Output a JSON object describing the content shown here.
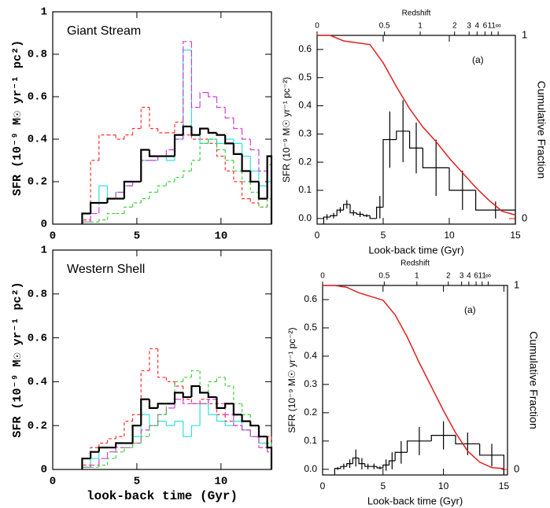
{
  "chart_data": [
    {
      "type": "histogram",
      "annotation": "Giant Stream",
      "ylabel": "SFR (10⁻⁹ M☉ yr⁻¹ pc²)",
      "xlim": [
        0,
        13
      ],
      "ylim": [
        0,
        1
      ],
      "xticks": [
        0,
        5,
        10
      ],
      "yticks": [
        0,
        0.2,
        0.4,
        0.6,
        0.8,
        1
      ],
      "bins": [
        1.75,
        2.25,
        2.75,
        3.25,
        3.75,
        4.25,
        4.75,
        5.25,
        5.75,
        6.25,
        6.75,
        7.25,
        7.75,
        8.25,
        8.75,
        9.25,
        9.75,
        10.25,
        10.75,
        11.25,
        11.75,
        12.25,
        12.75,
        13
      ],
      "series": [
        {
          "color": "#ff3030",
          "dash": "4,3",
          "values": [
            0.02,
            0.3,
            0.42,
            0.42,
            0.4,
            0.42,
            0.45,
            0.55,
            0.45,
            0.43,
            0.43,
            0.48,
            0.42,
            0.4,
            0.4,
            0.38,
            0.32,
            0.25,
            0.2,
            0.12,
            0.1,
            0.08,
            0.12
          ]
        },
        {
          "color": "#30e0e0",
          "dash": "",
          "values": [
            0.05,
            0.1,
            0.18,
            0.12,
            0.15,
            0.18,
            0.2,
            0.3,
            0.3,
            0.32,
            0.3,
            0.4,
            0.82,
            0.42,
            0.38,
            0.4,
            0.38,
            0.4,
            0.38,
            0.32,
            0.25,
            0.18,
            0.2
          ]
        },
        {
          "color": "#d040d0",
          "dash": "8,3",
          "values": [
            0.01,
            0.05,
            0.1,
            0.12,
            0.15,
            0.18,
            0.2,
            0.3,
            0.3,
            0.32,
            0.35,
            0.4,
            0.86,
            0.55,
            0.62,
            0.6,
            0.55,
            0.5,
            0.45,
            0.4,
            0.35,
            0.25,
            0.28
          ]
        },
        {
          "color": "#40d040",
          "dash": "4,3",
          "values": [
            0.01,
            0.01,
            0.02,
            0.05,
            0.05,
            0.08,
            0.1,
            0.12,
            0.15,
            0.18,
            0.2,
            0.22,
            0.25,
            0.3,
            0.38,
            0.4,
            0.35,
            0.3,
            0.25,
            0.2,
            0.15,
            0.08,
            0.12
          ]
        },
        {
          "color": "#000000",
          "dash": "",
          "values": [
            0.05,
            0.1,
            0.1,
            0.12,
            0.12,
            0.2,
            0.2,
            0.35,
            0.32,
            0.32,
            0.32,
            0.42,
            0.46,
            0.42,
            0.45,
            0.43,
            0.42,
            0.38,
            0.33,
            0.25,
            0.2,
            0.12,
            0.32
          ]
        }
      ]
    },
    {
      "type": "histogram",
      "annotation": "Western Shell",
      "ylabel": "SFR (10⁻⁹ M☉ yr⁻¹ pc²)",
      "xlabel": "look-back time (Gyr)",
      "xlim": [
        0,
        13
      ],
      "ylim": [
        0,
        1
      ],
      "xticks": [
        0,
        5,
        10
      ],
      "yticks": [
        0,
        0.2,
        0.4,
        0.6,
        0.8,
        1
      ],
      "bins": [
        1.75,
        2.25,
        2.75,
        3.25,
        3.75,
        4.25,
        4.75,
        5.25,
        5.75,
        6.25,
        6.75,
        7.25,
        7.75,
        8.25,
        8.75,
        9.25,
        9.75,
        10.25,
        10.75,
        11.25,
        11.75,
        12.25,
        12.75,
        13
      ],
      "series": [
        {
          "color": "#ff3030",
          "dash": "4,3",
          "values": [
            0.02,
            0.1,
            0.12,
            0.14,
            0.15,
            0.22,
            0.25,
            0.45,
            0.55,
            0.42,
            0.4,
            0.38,
            0.32,
            0.3,
            0.32,
            0.3,
            0.25,
            0.22,
            0.2,
            0.18,
            0.15,
            0.12,
            0.15
          ]
        },
        {
          "color": "#30e0e0",
          "dash": "",
          "values": [
            0.01,
            0.05,
            0.1,
            0.1,
            0.12,
            0.12,
            0.15,
            0.25,
            0.2,
            0.22,
            0.2,
            0.22,
            0.15,
            0.2,
            0.3,
            0.25,
            0.22,
            0.2,
            0.22,
            0.18,
            0.15,
            0.12,
            0.1
          ]
        },
        {
          "color": "#d040d0",
          "dash": "8,3",
          "values": [
            0.01,
            0.02,
            0.05,
            0.08,
            0.1,
            0.1,
            0.12,
            0.18,
            0.2,
            0.25,
            0.28,
            0.32,
            0.3,
            0.3,
            0.3,
            0.32,
            0.3,
            0.25,
            0.2,
            0.18,
            0.15,
            0.1,
            0.08
          ]
        },
        {
          "color": "#40d040",
          "dash": "4,3",
          "values": [
            0.01,
            0.01,
            0.02,
            0.05,
            0.08,
            0.1,
            0.12,
            0.15,
            0.2,
            0.25,
            0.3,
            0.4,
            0.42,
            0.45,
            0.35,
            0.4,
            0.42,
            0.38,
            0.3,
            0.25,
            0.2,
            0.15,
            0.12
          ]
        },
        {
          "color": "#000000",
          "dash": "",
          "values": [
            0.05,
            0.08,
            0.1,
            0.1,
            0.12,
            0.12,
            0.2,
            0.32,
            0.28,
            0.3,
            0.3,
            0.35,
            0.33,
            0.38,
            0.35,
            0.33,
            0.28,
            0.3,
            0.25,
            0.22,
            0.2,
            0.15,
            0.1
          ]
        }
      ]
    },
    {
      "type": "histogram",
      "annotation": "(a)",
      "ylabel": "SFR (10⁻⁹ M☉ yr⁻¹ pc⁻²)",
      "xlabel": "Look-back time (Gyr)",
      "y2label": "Cumulative Fraction",
      "x2label": "Redshift",
      "xlim": [
        0,
        15
      ],
      "ylim": [
        -0.02,
        0.65
      ],
      "y2lim": [
        -0.03,
        1
      ],
      "xticks": [
        0,
        5,
        10,
        15
      ],
      "yticks": [
        {
          "value": 0,
          "label": "0.0"
        },
        0.1,
        0.2,
        0.3,
        0.4,
        0.5,
        0.6
      ],
      "y2ticks": [
        0,
        1
      ],
      "x2ticks": [
        0,
        {
          "value": 5.1,
          "label": "0.5"
        },
        {
          "value": 7.8,
          "label": "1"
        },
        {
          "value": 10.4,
          "label": "2"
        },
        {
          "value": 11.5,
          "label": "3"
        },
        {
          "value": 12.1,
          "label": "4"
        },
        {
          "value": 12.7,
          "label": "6"
        },
        {
          "value": 13.2,
          "label": "11"
        },
        {
          "value": 13.7,
          "label": "∞"
        }
      ],
      "bins": [
        0.5,
        1,
        1.5,
        2,
        2.5,
        3,
        3.5,
        4,
        4.5,
        5,
        6,
        7,
        8,
        10,
        12,
        15
      ],
      "series": [
        {
          "color": "#000000",
          "dash": "",
          "values": [
            0.005,
            0.01,
            0.03,
            0.05,
            0.02,
            0.015,
            0.01,
            0,
            0.04,
            0.28,
            0.31,
            0.25,
            0.18,
            0.1,
            0.03
          ],
          "errors": [
            0.01,
            0.01,
            0.01,
            0.015,
            0.01,
            0.01,
            0.005,
            0,
            0.04,
            0.1,
            0.11,
            0.09,
            0.1,
            0.07,
            0.03
          ]
        }
      ],
      "lines": [
        {
          "color": "#e02020",
          "axis": "y2",
          "x": [
            0,
            1,
            2,
            3,
            4,
            5,
            6,
            7,
            8,
            9,
            10,
            11,
            12,
            13,
            14,
            15
          ],
          "values": [
            1,
            1,
            0.97,
            0.96,
            0.95,
            0.85,
            0.72,
            0.6,
            0.5,
            0.42,
            0.33,
            0.25,
            0.17,
            0.1,
            0.04,
            0.02
          ]
        }
      ]
    },
    {
      "type": "histogram",
      "annotation": "(a)",
      "ylabel": "SFR (10⁻⁹ M☉ yr⁻¹ pc⁻²)",
      "xlabel": "Look-back time (Gyr)",
      "y2label": "Cumulative Fraction",
      "x2label": "Redshift",
      "xlim": [
        0,
        15.3
      ],
      "ylim": [
        -0.02,
        0.65
      ],
      "y2lim": [
        -0.03,
        1
      ],
      "xticks": [
        0,
        5,
        10,
        15
      ],
      "yticks": [
        {
          "value": 0,
          "label": "0.0"
        },
        0.1,
        0.2,
        0.3,
        0.4,
        0.5,
        0.6
      ],
      "y2ticks": [
        0,
        1
      ],
      "x2ticks": [
        0,
        {
          "value": 5.1,
          "label": "0.5"
        },
        {
          "value": 7.8,
          "label": "1"
        },
        {
          "value": 10.4,
          "label": "2"
        },
        {
          "value": 11.5,
          "label": "3"
        },
        {
          "value": 12.1,
          "label": "4"
        },
        {
          "value": 12.7,
          "label": "6"
        },
        {
          "value": 13.2,
          "label": "11"
        },
        {
          "value": 13.7,
          "label": "∞"
        }
      ],
      "bins": [
        1,
        1.5,
        2,
        2.5,
        3,
        3.5,
        4,
        4.5,
        5,
        5.5,
        6,
        7,
        9,
        11,
        13,
        15
      ],
      "series": [
        {
          "color": "#000000",
          "dash": "",
          "values": [
            0.003,
            0.01,
            0.02,
            0.04,
            0.02,
            0.01,
            0.01,
            0.005,
            0.015,
            0.03,
            0.06,
            0.1,
            0.12,
            0.09,
            0.05
          ],
          "errors": [
            0.005,
            0.01,
            0.015,
            0.03,
            0.02,
            0.01,
            0.01,
            0.005,
            0.02,
            0.03,
            0.04,
            0.05,
            0.05,
            0.04,
            0.04
          ]
        }
      ],
      "lines": [
        {
          "color": "#e02020",
          "axis": "y2",
          "x": [
            0,
            1,
            2,
            3,
            4,
            5,
            6,
            7,
            8,
            9,
            10,
            11,
            12,
            13,
            14,
            15
          ],
          "values": [
            1,
            1,
            0.99,
            0.96,
            0.94,
            0.92,
            0.84,
            0.72,
            0.58,
            0.45,
            0.32,
            0.2,
            0.1,
            0.04,
            0.01,
            0.005
          ]
        }
      ]
    }
  ]
}
